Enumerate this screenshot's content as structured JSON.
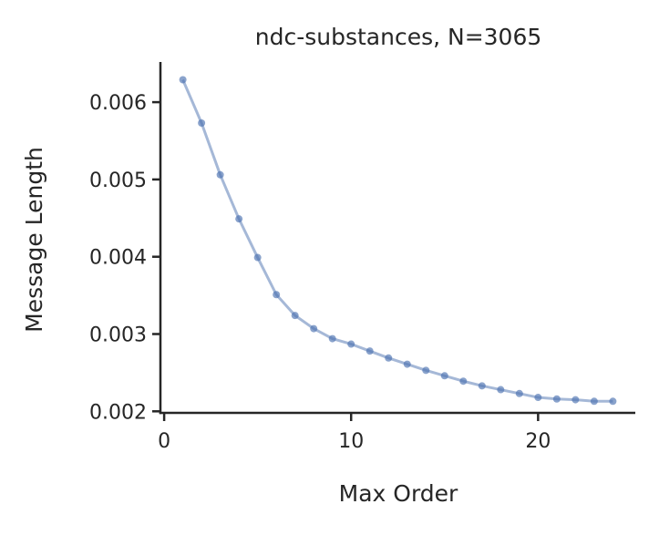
{
  "chart_data": {
    "type": "line",
    "title": "ndc-substances, N=3065",
    "xlabel": "Max Order",
    "ylabel": "Message Length",
    "xlim": [
      -0.2,
      25.2
    ],
    "ylim": [
      0.00198,
      0.00652
    ],
    "xticks": [
      0,
      10,
      20
    ],
    "yticks": [
      0.002,
      0.003,
      0.004,
      0.005,
      0.006
    ],
    "xtick_labels": [
      "0",
      "10",
      "20"
    ],
    "ytick_labels": [
      "0.002",
      "0.003",
      "0.004",
      "0.005",
      "0.006"
    ],
    "grid": false,
    "series": [
      {
        "color": "#4c72b0",
        "x": [
          1,
          2,
          3,
          4,
          5,
          6,
          7,
          8,
          9,
          10,
          11,
          12,
          13,
          14,
          15,
          16,
          17,
          18,
          19,
          20,
          21,
          22,
          23,
          24
        ],
        "values": [
          0.00629,
          0.00573,
          0.00506,
          0.00449,
          0.00399,
          0.00351,
          0.00324,
          0.00307,
          0.00294,
          0.00287,
          0.00278,
          0.00269,
          0.00261,
          0.00253,
          0.00246,
          0.00239,
          0.00233,
          0.00228,
          0.00223,
          0.00218,
          0.00216,
          0.00215,
          0.00213,
          0.00213
        ]
      }
    ]
  }
}
